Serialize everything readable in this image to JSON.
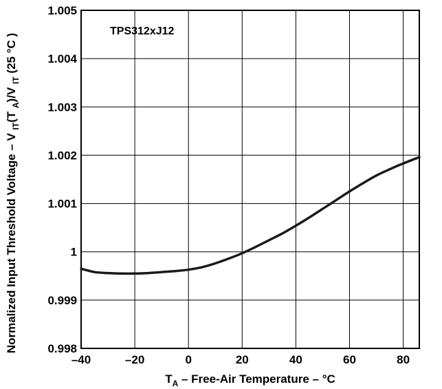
{
  "chart_data": {
    "type": "line",
    "title": "",
    "annotation": "TPS312xJ12",
    "xlabel": {
      "main": "T",
      "sub": "A",
      "rest": " – Free-Air Temperature – °C"
    },
    "ylabel": {
      "p1": "Normalized Input Threshold Voltage – V ",
      "s1": "IT",
      "p2": "(T ",
      "s2": "A",
      "p3": ")/V ",
      "s3": "IT",
      "p4": " (25 °C )"
    },
    "xlim": [
      -40,
      86
    ],
    "ylim": [
      0.998,
      1.005
    ],
    "x_ticks": [
      -40,
      -20,
      0,
      20,
      40,
      60,
      80
    ],
    "x_tick_labels": [
      "–40",
      "–20",
      "0",
      "20",
      "40",
      "60",
      "80"
    ],
    "y_ticks": [
      0.998,
      0.999,
      1,
      1.001,
      1.002,
      1.003,
      1.004,
      1.005
    ],
    "y_tick_labels": [
      "0.998",
      "0.999",
      "1",
      "1.001",
      "1.002",
      "1.003",
      "1.004",
      "1.005"
    ],
    "grid": true,
    "line_color": "#1a1a1a",
    "series": [
      {
        "x": [
          -40,
          -35,
          -30,
          -25,
          -20,
          -15,
          -10,
          -5,
          0,
          5,
          10,
          15,
          20,
          25,
          30,
          35,
          40,
          45,
          50,
          55,
          60,
          65,
          70,
          75,
          80,
          86
        ],
        "y": [
          0.99965,
          0.99958,
          0.99956,
          0.99955,
          0.99955,
          0.99956,
          0.99958,
          0.9996,
          0.99963,
          0.99968,
          0.99976,
          0.99986,
          0.99997,
          1.0001,
          1.00024,
          1.00038,
          1.00054,
          1.00071,
          1.00089,
          1.00107,
          1.00125,
          1.00142,
          1.00158,
          1.00171,
          1.00183,
          1.00196
        ]
      }
    ]
  }
}
